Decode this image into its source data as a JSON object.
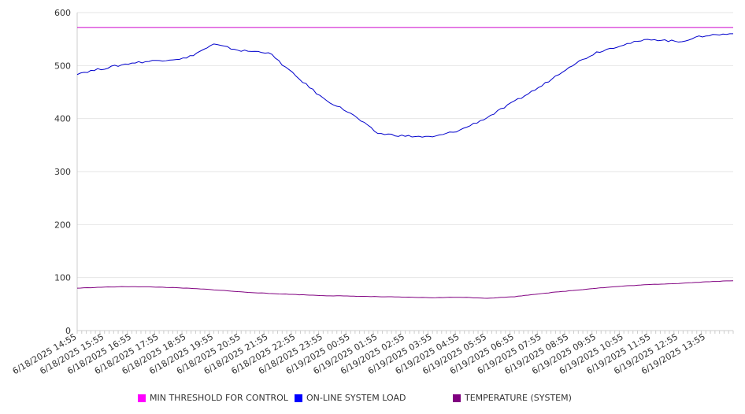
{
  "chart_data": {
    "type": "line",
    "title": "",
    "xlabel": "",
    "ylabel": "",
    "ylim": [
      0,
      600
    ],
    "yticks": [
      0,
      100,
      200,
      300,
      400,
      500,
      600
    ],
    "grid": true,
    "legend_position": "bottom",
    "x_tick_labels": [
      "6/18/2025 14:55",
      "6/18/2025 15:55",
      "6/18/2025 16:55",
      "6/18/2025 17:55",
      "6/18/2025 18:55",
      "6/18/2025 19:55",
      "6/18/2025 20:55",
      "6/18/2025 21:55",
      "6/18/2025 22:55",
      "6/18/2025 23:55",
      "6/19/2025 00:55",
      "6/19/2025 01:55",
      "6/19/2025 02:55",
      "6/19/2025 03:55",
      "6/19/2025 04:55",
      "6/19/2025 05:55",
      "6/19/2025 06:55",
      "6/19/2025 07:55",
      "6/19/2025 08:55",
      "6/19/2025 09:55",
      "6/19/2025 10:55",
      "6/19/2025 11:55",
      "6/19/2025 12:55",
      "6/19/2025 13:55"
    ],
    "x": [
      "6/18/2025 14:55",
      "6/18/2025 15:55",
      "6/18/2025 16:55",
      "6/18/2025 17:55",
      "6/18/2025 18:55",
      "6/18/2025 19:55",
      "6/18/2025 20:55",
      "6/18/2025 21:55",
      "6/18/2025 22:55",
      "6/18/2025 23:55",
      "6/19/2025 00:55",
      "6/19/2025 01:55",
      "6/19/2025 02:55",
      "6/19/2025 03:55",
      "6/19/2025 04:55",
      "6/19/2025 05:55",
      "6/19/2025 06:55",
      "6/19/2025 07:55",
      "6/19/2025 08:55",
      "6/19/2025 09:55",
      "6/19/2025 10:55",
      "6/19/2025 11:55",
      "6/19/2025 12:55",
      "6/19/2025 13:55",
      "6/19/2025 14:55"
    ],
    "series": [
      {
        "name": "MIN THRESHOLD FOR CONTROL",
        "color": "#cc00cc",
        "values": [
          572,
          572,
          572,
          572,
          572,
          572,
          572,
          572,
          572,
          572,
          572,
          572,
          572,
          572,
          572,
          572,
          572,
          572,
          572,
          572,
          572,
          572,
          572,
          572,
          572
        ]
      },
      {
        "name": "ON-LINE SYSTEM LOAD",
        "color": "#0000cc",
        "values": [
          485,
          495,
          505,
          510,
          514,
          540,
          528,
          525,
          480,
          438,
          410,
          372,
          367,
          365,
          378,
          402,
          432,
          462,
          498,
          525,
          540,
          550,
          545,
          557,
          560
        ]
      },
      {
        "name": "TEMPERATURE (SYSTEM)",
        "color": "#800080",
        "values": [
          80,
          82,
          83,
          82,
          80,
          77,
          73,
          70,
          68,
          66,
          65,
          64,
          63,
          62,
          63,
          61,
          64,
          70,
          75,
          80,
          84,
          87,
          89,
          92,
          94
        ]
      }
    ],
    "legend": [
      {
        "label": "MIN THRESHOLD FOR CONTROL",
        "color": "#ff00ff"
      },
      {
        "label": "ON-LINE SYSTEM LOAD",
        "color": "#0000ff"
      },
      {
        "label": "TEMPERATURE (SYSTEM)",
        "color": "#800080"
      }
    ]
  }
}
